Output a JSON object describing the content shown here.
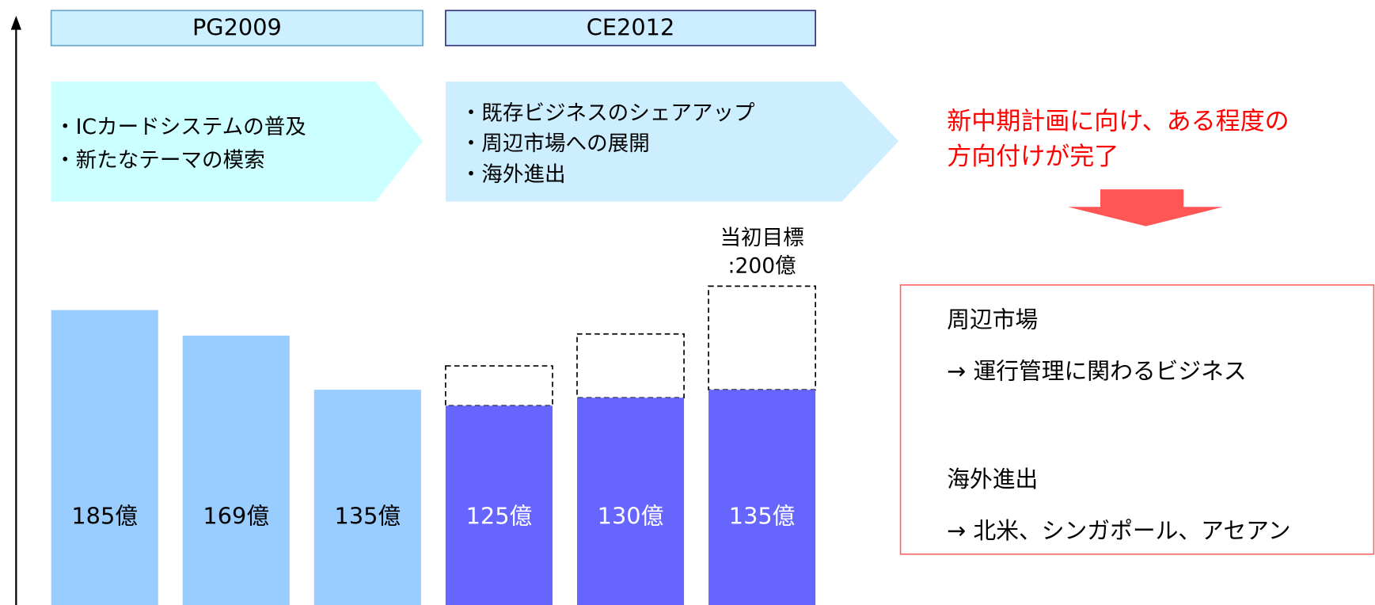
{
  "chart_data": {
    "type": "bar",
    "ylim": [
      0,
      220
    ],
    "phases": [
      {
        "name": "PG2009",
        "color": "#99ccff",
        "bullets": [
          "・ICカードシステムの普及",
          "・新たなテーマの模索"
        ],
        "categories": [
          null,
          null,
          null
        ],
        "values": [
          185,
          169,
          135
        ],
        "value_labels": [
          "185億",
          "169億",
          "135億"
        ]
      },
      {
        "name": "CE2012",
        "color": "#6666ff",
        "bullets": [
          "・既存ビジネスのシェアアップ",
          "・周辺市場への展開",
          "・海外進出"
        ],
        "categories": [
          null,
          null,
          null
        ],
        "values": [
          125,
          130,
          135
        ],
        "value_labels": [
          "125億",
          "130億",
          "135億"
        ],
        "targets": [
          150,
          170,
          200
        ]
      }
    ],
    "target_label": [
      "当初目標",
      ":200億"
    ],
    "note": [
      "新中期計画に向け、ある程度の",
      "方向付けが完了"
    ],
    "box_lines": [
      "周辺市場",
      "→ 運行管理に関わるビジネス",
      "海外進出",
      "→ 北米、シンガポール、アセアン"
    ]
  }
}
